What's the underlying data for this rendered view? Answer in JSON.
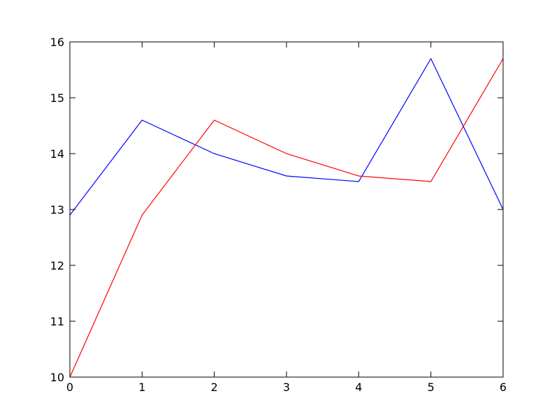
{
  "chart_data": {
    "type": "line",
    "title": "",
    "xlabel": "",
    "ylabel": "",
    "xlim": [
      0,
      6
    ],
    "ylim": [
      10,
      16
    ],
    "x_ticks": [
      "0",
      "1",
      "2",
      "3",
      "4",
      "5",
      "6"
    ],
    "y_ticks": [
      "10",
      "11",
      "12",
      "13",
      "14",
      "15",
      "16"
    ],
    "grid": false,
    "legend": "none",
    "series": [
      {
        "color": "#0000ff",
        "x": [
          0,
          1,
          2,
          3,
          4,
          5,
          6
        ],
        "y": [
          12.9,
          14.6,
          14.0,
          13.6,
          13.5,
          15.7,
          13.0
        ]
      },
      {
        "color": "#ff0000",
        "x": [
          0,
          1,
          2,
          3,
          4,
          5,
          6
        ],
        "y": [
          10.0,
          12.9,
          14.6,
          14.0,
          13.6,
          13.5,
          15.7
        ]
      }
    ]
  }
}
